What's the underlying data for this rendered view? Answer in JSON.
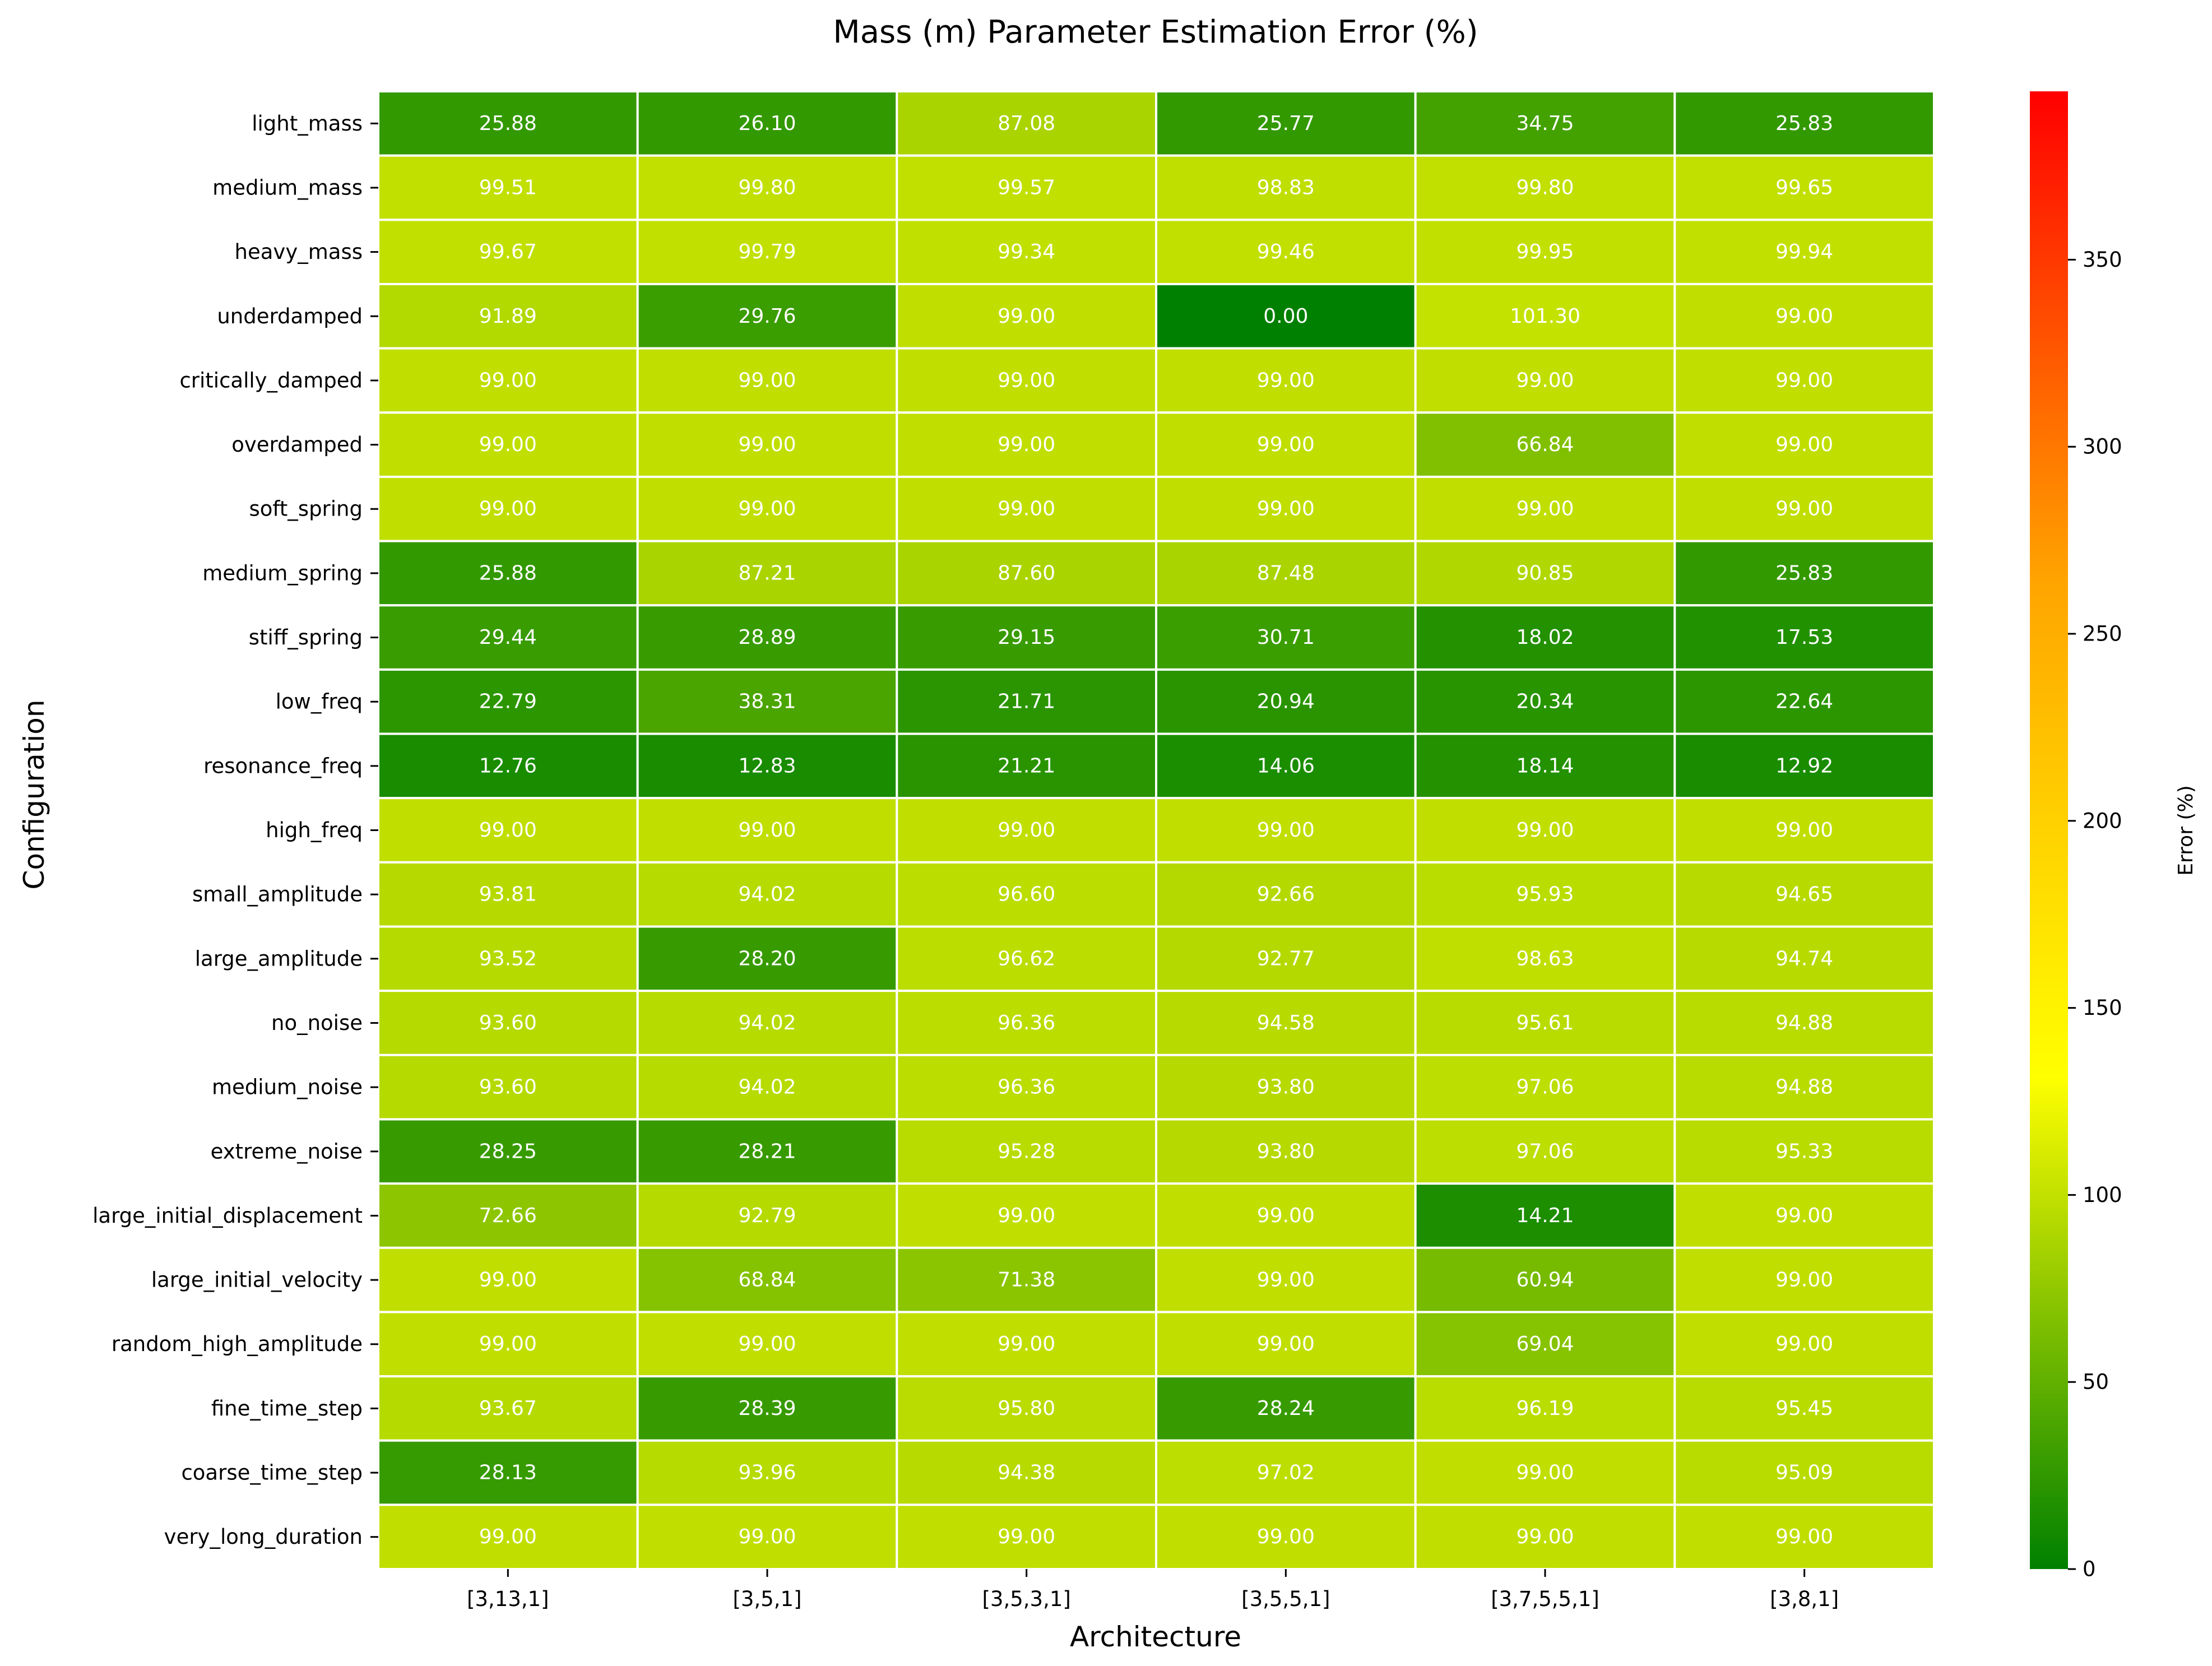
{
  "chart_data": {
    "type": "heatmap",
    "title": "Mass (m) Parameter Estimation Error (%)",
    "xlabel": "Architecture",
    "ylabel": "Configuration",
    "colorbar_label": "Error (%)",
    "colorbar_ticks": [
      0,
      50,
      100,
      150,
      200,
      250,
      300,
      350
    ],
    "colorbar_range": [
      0,
      395
    ],
    "colormap": [
      "#008000",
      "#ffff00",
      "#ffa500",
      "#ff0000"
    ],
    "cell_border_color": "#ffffff",
    "columns": [
      "[3,13,1]",
      "[3,5,1]",
      "[3,5,3,1]",
      "[3,5,5,1]",
      "[3,7,5,5,1]",
      "[3,8,1]"
    ],
    "rows": [
      "light_mass",
      "medium_mass",
      "heavy_mass",
      "underdamped",
      "critically_damped",
      "overdamped",
      "soft_spring",
      "medium_spring",
      "stiff_spring",
      "low_freq",
      "resonance_freq",
      "high_freq",
      "small_amplitude",
      "large_amplitude",
      "no_noise",
      "medium_noise",
      "extreme_noise",
      "large_initial_displacement",
      "large_initial_velocity",
      "random_high_amplitude",
      "fine_time_step",
      "coarse_time_step",
      "very_long_duration"
    ],
    "values": [
      [
        25.88,
        26.1,
        87.08,
        25.77,
        34.75,
        25.83
      ],
      [
        99.51,
        99.8,
        99.57,
        98.83,
        99.8,
        99.65
      ],
      [
        99.67,
        99.79,
        99.34,
        99.46,
        99.95,
        99.94
      ],
      [
        91.89,
        29.76,
        99.0,
        0.0,
        101.3,
        99.0
      ],
      [
        99.0,
        99.0,
        99.0,
        99.0,
        99.0,
        99.0
      ],
      [
        99.0,
        99.0,
        99.0,
        99.0,
        66.84,
        99.0
      ],
      [
        99.0,
        99.0,
        99.0,
        99.0,
        99.0,
        99.0
      ],
      [
        25.88,
        87.21,
        87.6,
        87.48,
        90.85,
        25.83
      ],
      [
        29.44,
        28.89,
        29.15,
        30.71,
        18.02,
        17.53
      ],
      [
        22.79,
        38.31,
        21.71,
        20.94,
        20.34,
        22.64
      ],
      [
        12.76,
        12.83,
        21.21,
        14.06,
        18.14,
        12.92
      ],
      [
        99.0,
        99.0,
        99.0,
        99.0,
        99.0,
        99.0
      ],
      [
        93.81,
        94.02,
        96.6,
        92.66,
        95.93,
        94.65
      ],
      [
        93.52,
        28.2,
        96.62,
        92.77,
        98.63,
        94.74
      ],
      [
        93.6,
        94.02,
        96.36,
        94.58,
        95.61,
        94.88
      ],
      [
        93.6,
        94.02,
        96.36,
        93.8,
        97.06,
        94.88
      ],
      [
        28.25,
        28.21,
        95.28,
        93.8,
        97.06,
        95.33
      ],
      [
        72.66,
        92.79,
        99.0,
        99.0,
        14.21,
        99.0
      ],
      [
        99.0,
        68.84,
        71.38,
        99.0,
        60.94,
        99.0
      ],
      [
        99.0,
        99.0,
        99.0,
        99.0,
        69.04,
        99.0
      ],
      [
        93.67,
        28.39,
        95.8,
        28.24,
        96.19,
        95.45
      ],
      [
        28.13,
        93.96,
        94.38,
        97.02,
        99.0,
        95.09
      ],
      [
        99.0,
        99.0,
        99.0,
        99.0,
        99.0,
        99.0
      ]
    ]
  }
}
